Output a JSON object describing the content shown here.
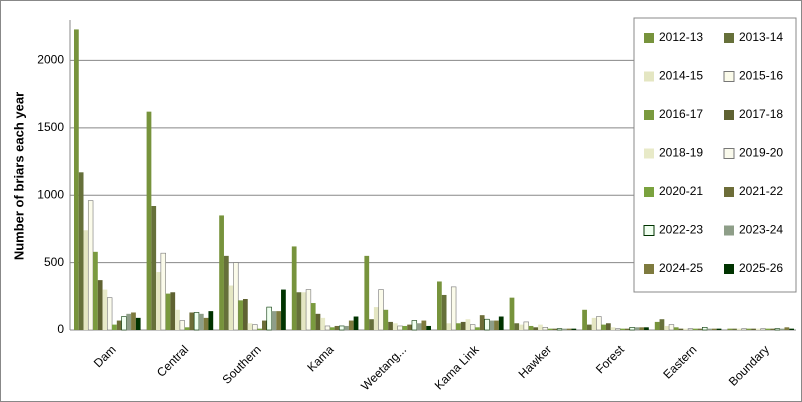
{
  "chart_data": {
    "type": "bar",
    "y_label": "Number of briars each year",
    "categories": [
      "Dam",
      "Central",
      "Southern",
      "Kama",
      "Weetang...",
      "Kama Link",
      "Hawker",
      "Forest",
      "Eastern",
      "Boundary"
    ],
    "ylim": [
      0,
      2300
    ],
    "yticks": [
      0,
      500,
      1000,
      1500,
      2000
    ],
    "grid": true,
    "legend": "top-right",
    "series": [
      {
        "name": "2012-13",
        "color": "#77933c",
        "values": [
          2230,
          1620,
          850,
          620,
          550,
          360,
          240,
          150,
          60,
          10
        ]
      },
      {
        "name": "2013-14",
        "color": "#66703a",
        "values": [
          1170,
          920,
          550,
          280,
          80,
          260,
          50,
          40,
          80,
          10
        ]
      },
      {
        "name": "2014-15",
        "color": "#e4e6c2",
        "values": [
          740,
          430,
          330,
          280,
          170,
          50,
          40,
          90,
          30,
          10
        ]
      },
      {
        "name": "2015-16",
        "color": "#fbfbea",
        "values": [
          960,
          570,
          500,
          300,
          300,
          320,
          60,
          100,
          40,
          10
        ]
      },
      {
        "name": "2016-17",
        "color": "#7a9a3e",
        "values": [
          580,
          270,
          220,
          200,
          150,
          50,
          30,
          40,
          20,
          10
        ]
      },
      {
        "name": "2017-18",
        "color": "#5f6232",
        "values": [
          370,
          280,
          230,
          120,
          60,
          60,
          20,
          50,
          10,
          10
        ]
      },
      {
        "name": "2018-19",
        "color": "#e8eac8",
        "values": [
          300,
          150,
          50,
          90,
          50,
          80,
          40,
          20,
          10,
          10
        ]
      },
      {
        "name": "2019-20",
        "color": "#fafaec",
        "values": [
          240,
          70,
          40,
          30,
          30,
          40,
          20,
          10,
          10,
          10
        ]
      },
      {
        "name": "2020-21",
        "color": "#7aa23e",
        "values": [
          40,
          20,
          10,
          20,
          30,
          20,
          10,
          10,
          10,
          10
        ]
      },
      {
        "name": "2021-22",
        "color": "#6d6d38",
        "values": [
          70,
          130,
          70,
          30,
          40,
          110,
          10,
          10,
          10,
          10
        ]
      },
      {
        "name": "2022-23",
        "color": "#f0fff0",
        "values": [
          100,
          130,
          170,
          30,
          70,
          80,
          10,
          20,
          20,
          10
        ]
      },
      {
        "name": "2023-24",
        "color": "#8e9e88",
        "values": [
          120,
          120,
          140,
          30,
          50,
          70,
          10,
          20,
          10,
          10
        ]
      },
      {
        "name": "2024-25",
        "color": "#7e7a3e",
        "values": [
          130,
          90,
          140,
          70,
          70,
          70,
          10,
          20,
          10,
          20
        ]
      },
      {
        "name": "2025-26",
        "color": "#003300",
        "values": [
          90,
          140,
          300,
          100,
          30,
          100,
          10,
          20,
          10,
          10
        ]
      }
    ]
  }
}
